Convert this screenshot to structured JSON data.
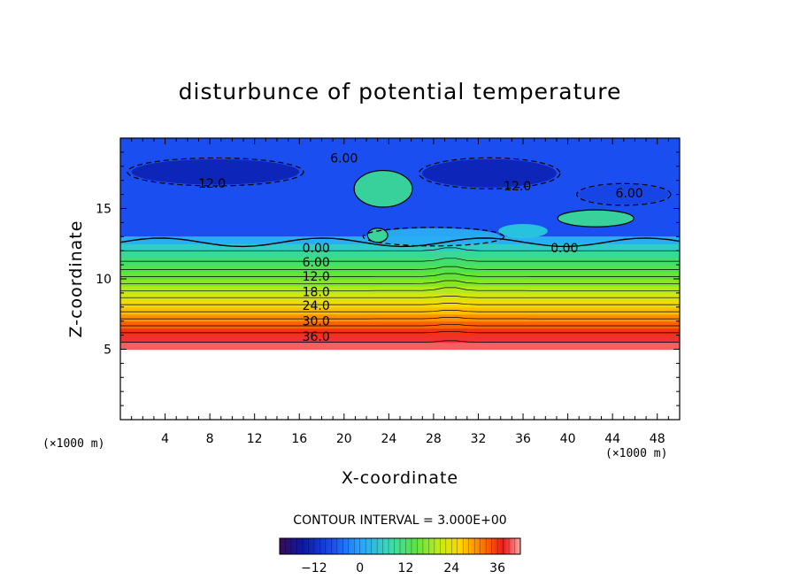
{
  "chart_data": {
    "type": "heatmap",
    "title": "disturbunce of potential temperature",
    "xlabel": "X-coordinate",
    "ylabel": "Z-coordinate",
    "x_unit": "(×1000 m)",
    "z_unit": "(×1000 m)",
    "xlim": [
      0,
      50
    ],
    "ylim": [
      0,
      20
    ],
    "x_ticks": [
      4,
      8,
      12,
      16,
      20,
      24,
      28,
      32,
      36,
      40,
      44,
      48
    ],
    "y_ticks": [
      5,
      10,
      15
    ],
    "contour_interval_text": "CONTOUR INTERVAL = 3.000E+00",
    "contour_interval": 3.0,
    "data_region_z": [
      5,
      20
    ],
    "contour_labels": [
      {
        "text": "6.00",
        "x": 20,
        "z": 18.6
      },
      {
        "text": "12.0",
        "x": 8.2,
        "z": 16.8
      },
      {
        "text": "12.0",
        "x": 35.5,
        "z": 16.6
      },
      {
        "text": "6.00",
        "x": 45.5,
        "z": 16.1
      },
      {
        "text": "0.00",
        "x": 17.5,
        "z": 12.2
      },
      {
        "text": "0.00",
        "x": 39.7,
        "z": 12.2
      },
      {
        "text": "6.00",
        "x": 17.5,
        "z": 11.2
      },
      {
        "text": "12.0",
        "x": 17.5,
        "z": 10.2
      },
      {
        "text": "18.0",
        "x": 17.5,
        "z": 9.1
      },
      {
        "text": "24.0",
        "x": 17.5,
        "z": 8.1
      },
      {
        "text": "30.0",
        "x": 17.5,
        "z": 7.0
      },
      {
        "text": "36.0",
        "x": 17.5,
        "z": 5.9
      }
    ],
    "colorbar": {
      "range": [
        -21,
        42
      ],
      "ticks": [
        -12,
        0,
        12,
        24,
        36
      ]
    },
    "series": [
      {
        "values_description_free": true,
        "profile_z": [
          5.0,
          5.5,
          6.0,
          6.5,
          7.0,
          7.5,
          8.0,
          8.5,
          9.0,
          9.5,
          10.0,
          10.5,
          11.0,
          11.5,
          12.0,
          12.5,
          13.0
        ],
        "profile_theta": [
          40,
          38,
          36,
          33,
          30,
          27,
          24,
          21,
          18,
          15,
          12,
          9,
          6,
          4,
          2,
          0,
          -4
        ]
      }
    ]
  }
}
